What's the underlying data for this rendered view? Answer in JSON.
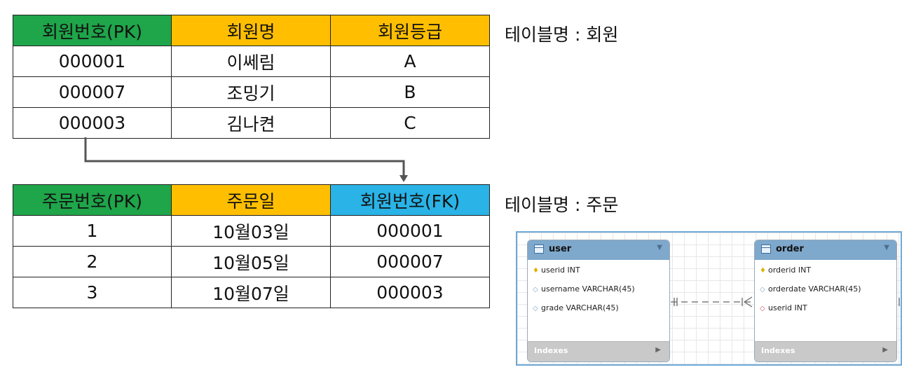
{
  "member_table": {
    "headers": [
      "회원번호(PK)",
      "회원명",
      "회원등급"
    ],
    "rows": [
      [
        "000001",
        "이쎄림",
        "A"
      ],
      [
        "000007",
        "조밍기",
        "B"
      ],
      [
        "000003",
        "김나켠",
        "C"
      ]
    ],
    "caption": "테이블명 : 회원"
  },
  "order_table": {
    "headers": [
      "주문번호(PK)",
      "주문일",
      "회원번호(FK)"
    ],
    "rows": [
      [
        "1",
        "10월03일",
        "000001"
      ],
      [
        "2",
        "10월05일",
        "000007"
      ],
      [
        "3",
        "10월07일",
        "000003"
      ]
    ],
    "caption": "테이블명 : 주문"
  },
  "erd": {
    "user": {
      "name": "user",
      "columns": [
        "userid INT",
        "username VARCHAR(45)",
        "grade VARCHAR(45)"
      ],
      "footer": "Indexes"
    },
    "order": {
      "name": "order",
      "columns": [
        "orderid INT",
        "orderdate VARCHAR(45)",
        "userid INT"
      ],
      "footer": "Indexes"
    }
  },
  "colors": {
    "header_green": "#1fa54a",
    "header_orange": "#ffbf00",
    "header_blue": "#29b3e6",
    "entity_header": "#7ea8cc",
    "erd_border": "#6fa9d8"
  },
  "icons": {
    "primary_key": "key-icon",
    "column": "diamond-icon",
    "foreign_key": "red-diamond-icon",
    "table": "table-icon"
  }
}
